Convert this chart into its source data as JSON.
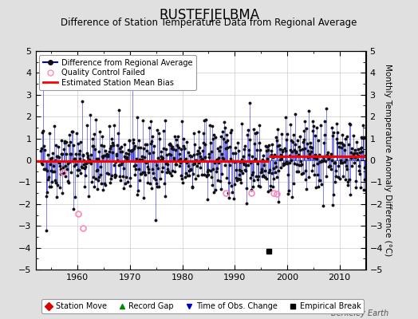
{
  "title": "RUSTEFJELBMA",
  "subtitle": "Difference of Station Temperature Data from Regional Average",
  "ylabel": "Monthly Temperature Anomaly Difference (°C)",
  "xlim": [
    1952,
    2015
  ],
  "ylim": [
    -5,
    5
  ],
  "bias_line_segments": [
    [
      1952,
      1996.5,
      -0.05
    ],
    [
      1996.5,
      2015,
      0.18
    ]
  ],
  "background_color": "#e0e0e0",
  "plot_bg_color": "#ffffff",
  "line_color": "#0000cc",
  "marker_color": "#111111",
  "bias_color": "#ff0000",
  "qc_color": "#ff88bb",
  "seed": 42,
  "n_points": 744,
  "start_year": 1953.0,
  "end_year": 2014.9,
  "empirical_break_x": 1996.5,
  "empirical_break_y": -4.15,
  "qc_failed_points": [
    [
      1957.3,
      -0.55
    ],
    [
      1960.2,
      -2.45
    ],
    [
      1961.0,
      -3.1
    ],
    [
      1988.3,
      -1.5
    ],
    [
      1993.1,
      -1.5
    ],
    [
      1997.4,
      -1.5
    ],
    [
      1998.1,
      -1.55
    ]
  ],
  "watermark": "Berkeley Earth",
  "tick_label_fontsize": 8,
  "title_fontsize": 12,
  "subtitle_fontsize": 8.5,
  "ylabel_fontsize": 7.5
}
